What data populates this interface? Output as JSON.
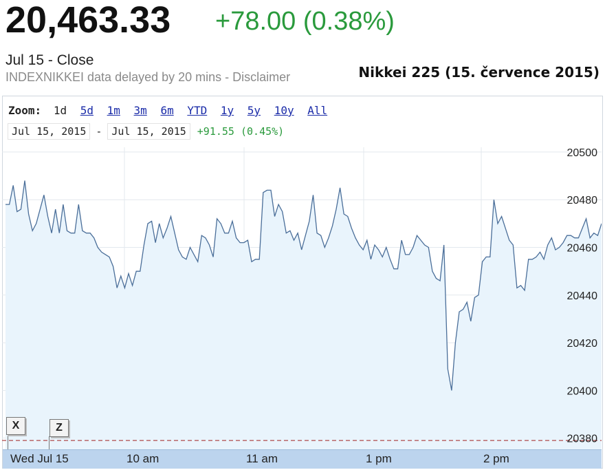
{
  "header": {
    "price": "20,463.33",
    "change": "+78.00 (0.38%)",
    "close_label": "Jul 15 - Close",
    "delayed_notice": "INDEXNIKKEI data delayed by 20 mins - Disclaimer",
    "caption": "Nikkei 225 (15. července 2015)"
  },
  "zoom": {
    "label": "Zoom:",
    "options": [
      "1d",
      "5d",
      "1m",
      "3m",
      "6m",
      "YTD",
      "1y",
      "5y",
      "10y",
      "All"
    ],
    "active": "1d"
  },
  "range": {
    "start": "Jul 15, 2015",
    "separator": "-",
    "end": "Jul 15, 2015",
    "change": "+91.55 (0.45%)"
  },
  "flags": [
    "X",
    "Z"
  ],
  "colors": {
    "price_up": "#2a9a3c",
    "line": "#4a6e99",
    "fill": "#e9f4fc",
    "axis_band": "#bcd4ee",
    "ref_line": "#b04a4a",
    "zoom_link": "#1a2ba8"
  },
  "chart_data": {
    "type": "line",
    "x_ticks": [
      "Wed Jul 15",
      "10 am",
      "11 am",
      "1 pm",
      "2 pm"
    ],
    "y_ticks": [
      20380,
      20400,
      20420,
      20440,
      20460,
      20480,
      20500
    ],
    "ylim": [
      20375,
      20502
    ],
    "reference_line": 20379,
    "grid": true,
    "series": [
      {
        "values": [
          20478,
          20478,
          20486,
          20475,
          20476,
          20488,
          20474,
          20467,
          20470,
          20476,
          20482,
          20473,
          20466,
          20476,
          20466,
          20478,
          20467,
          20466,
          20466,
          20478,
          20467,
          20466,
          20466,
          20464,
          20460,
          20458,
          20457,
          20456,
          20452,
          20443,
          20448,
          20443,
          20449,
          20444,
          20450,
          20450,
          20461,
          20470,
          20471,
          20462,
          20470,
          20464,
          20468,
          20473,
          20466,
          20459,
          20456,
          20455,
          20460,
          20457,
          20454,
          20465,
          20464,
          20461,
          20456,
          20472,
          20470,
          20466,
          20466,
          20471,
          20464,
          20462,
          20462,
          20463,
          20454,
          20455,
          20455,
          20483,
          20484,
          20484,
          20473,
          20478,
          20475,
          20466,
          20467,
          20463,
          20466,
          20459,
          20465,
          20471,
          20482,
          20466,
          20465,
          20460,
          20464,
          20469,
          20476,
          20485,
          20474,
          20473,
          20468,
          20464,
          20461,
          20459,
          20463,
          20455,
          20461,
          20459,
          20456,
          20460,
          20455,
          20451,
          20451,
          20463,
          20457,
          20457,
          20460,
          20465,
          20463,
          20461,
          20460,
          20450,
          20447,
          20446,
          20461,
          20409,
          20400,
          20420,
          20433,
          20434,
          20437,
          20429,
          20439,
          20440,
          20454,
          20456,
          20456,
          20480,
          20470,
          20473,
          20468,
          20463,
          20461,
          20443,
          20444,
          20442,
          20455,
          20455,
          20456,
          20458,
          20455,
          20461,
          20464,
          20459,
          20460,
          20462,
          20465,
          20465,
          20464,
          20464,
          20468,
          20472,
          20464,
          20466,
          20465,
          20470
        ]
      }
    ]
  }
}
